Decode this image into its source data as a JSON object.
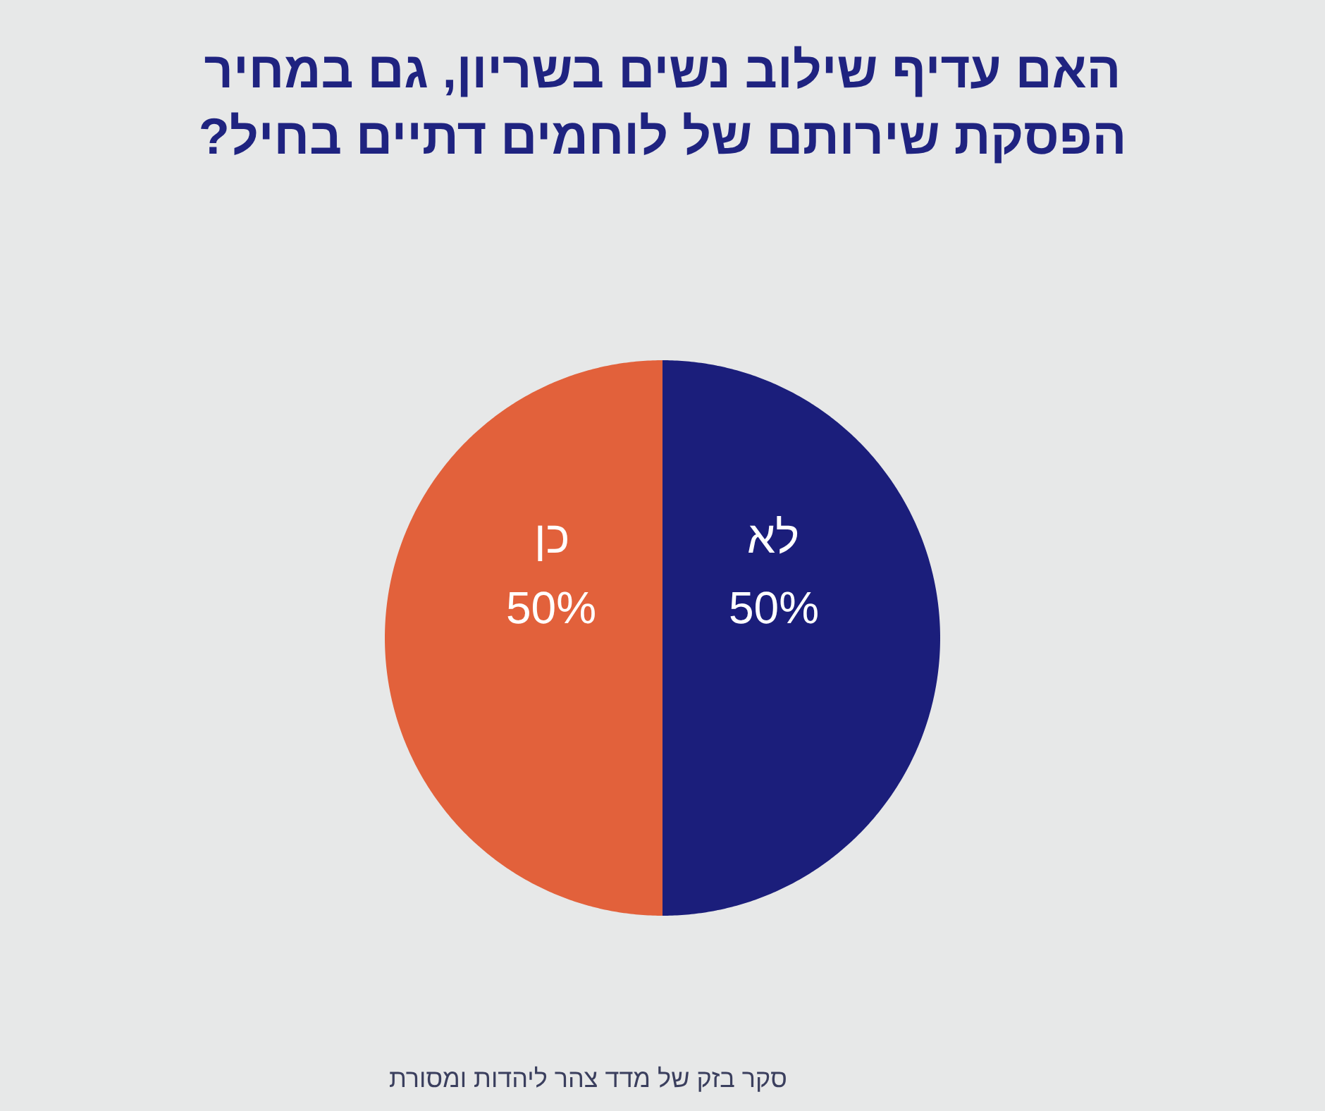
{
  "chart_data": {
    "type": "pie",
    "title": "האם עדיף שילוב נשים בשריון, גם במחיר הפסקת שירותם של לוחמים דתיים בחיל?",
    "categories": [
      "לא",
      "כן"
    ],
    "values": [
      50,
      50
    ],
    "colors": [
      "#1b1e7b",
      "#e2613b"
    ],
    "value_labels": [
      "50%",
      "50%"
    ],
    "legend": false,
    "annotations": [
      "סקר בזק של מדד צהר ליהדות ומסורת"
    ]
  }
}
